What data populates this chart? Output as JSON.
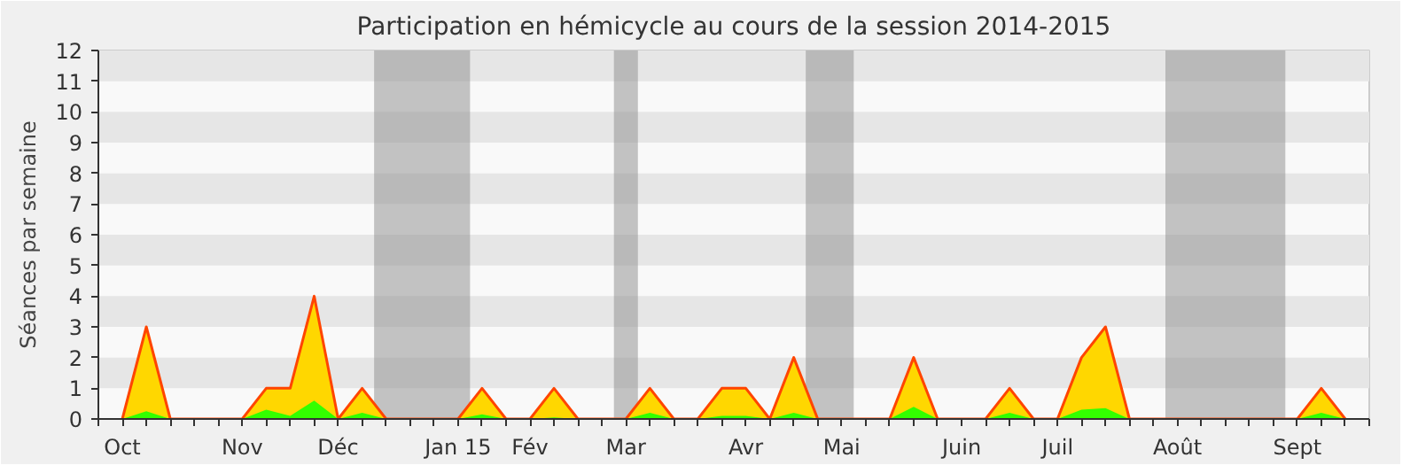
{
  "chart_data": {
    "type": "area",
    "title": "Participation en hémicycle au cours de la session 2014-2015",
    "ylabel": "Séances par semaine",
    "categories": [
      "Oct",
      null,
      null,
      null,
      null,
      "Nov",
      null,
      null,
      null,
      "Déc",
      null,
      null,
      null,
      null,
      "Jan 15",
      null,
      null,
      "Fév",
      null,
      null,
      null,
      "Mar",
      null,
      null,
      null,
      null,
      "Avr",
      null,
      null,
      null,
      "Mai",
      null,
      null,
      null,
      null,
      "Juin",
      null,
      null,
      null,
      "Juil",
      null,
      null,
      null,
      null,
      "Août",
      null,
      null,
      null,
      null,
      "Sept",
      null,
      null
    ],
    "series": [
      {
        "color": "#ffd700",
        "values": [
          0,
          3,
          0,
          0,
          0,
          0,
          1,
          1,
          4,
          0,
          1,
          0,
          0,
          0,
          0,
          1,
          0,
          0,
          1,
          0,
          0,
          0,
          1,
          0,
          0,
          1,
          1,
          0,
          2,
          0,
          0,
          0,
          0,
          2,
          0,
          0,
          0,
          1,
          0,
          0,
          2,
          3,
          0,
          0,
          0,
          0,
          0,
          0,
          0,
          0,
          1,
          0
        ]
      },
      {
        "color": "#33ff00",
        "values": [
          0,
          0.25,
          0,
          0,
          0,
          0,
          0.3,
          0.1,
          0.6,
          0,
          0.2,
          0,
          0,
          0,
          0,
          0.15,
          0,
          0,
          0.05,
          0,
          0,
          0,
          0.2,
          0,
          0,
          0.1,
          0.1,
          0,
          0.2,
          0,
          0,
          0,
          0,
          0.4,
          0,
          0,
          0,
          0.2,
          0,
          0,
          0.3,
          0.35,
          0,
          0,
          0,
          0,
          0,
          0,
          0,
          0,
          0.2,
          0
        ]
      }
    ],
    "ylim": [
      0,
      12
    ],
    "yticks": [
      0,
      1,
      2,
      3,
      4,
      5,
      6,
      7,
      8,
      9,
      10,
      11,
      12
    ]
  }
}
